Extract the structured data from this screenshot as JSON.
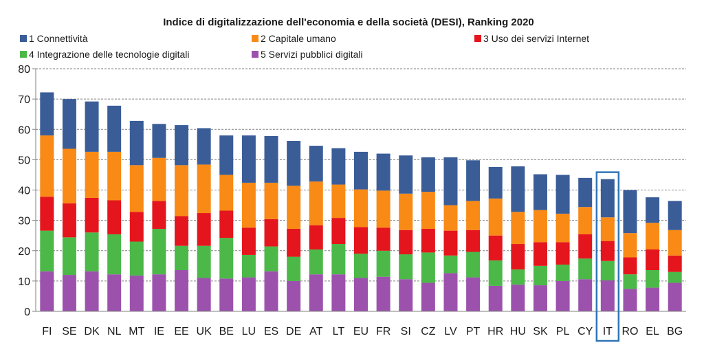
{
  "chart_data": {
    "type": "bar",
    "stacked": true,
    "title": "Indice di digitalizzazione dell'economia e della società (DESI), Ranking 2020",
    "xlabel": "",
    "ylabel": "",
    "ylim": [
      0,
      80
    ],
    "yticks": [
      0,
      10,
      20,
      30,
      40,
      50,
      60,
      70,
      80
    ],
    "grid": true,
    "legend_position": "top",
    "highlight_category": "IT",
    "highlight_color": "#2e75b6",
    "categories": [
      "FI",
      "SE",
      "DK",
      "NL",
      "MT",
      "IE",
      "EE",
      "UK",
      "BE",
      "LU",
      "ES",
      "DE",
      "AT",
      "LT",
      "EU",
      "FR",
      "SI",
      "CZ",
      "LV",
      "PT",
      "HR",
      "HU",
      "SK",
      "PL",
      "CY",
      "IT",
      "RO",
      "EL",
      "BG"
    ],
    "series": [
      {
        "name": "5 Servizi pubblici digitali",
        "color": "#9c52ad",
        "values": [
          13.2,
          12.0,
          13.2,
          12.2,
          11.8,
          12.2,
          13.6,
          11.0,
          10.8,
          11.2,
          13.2,
          10.0,
          12.2,
          12.2,
          11.0,
          11.4,
          10.6,
          9.4,
          12.6,
          11.2,
          8.4,
          8.8,
          8.6,
          10.0,
          10.6,
          10.2,
          7.4,
          7.8,
          9.4
        ]
      },
      {
        "name": "4 Integrazione delle tecnologie digitali",
        "color": "#4cb848",
        "values": [
          13.4,
          12.4,
          12.8,
          13.2,
          11.2,
          15.0,
          8.0,
          10.6,
          13.4,
          7.4,
          8.2,
          8.0,
          8.2,
          10.0,
          8.0,
          8.6,
          8.2,
          10.0,
          5.8,
          8.4,
          8.4,
          5.0,
          6.4,
          5.4,
          6.8,
          6.4,
          4.8,
          5.8,
          3.6
        ]
      },
      {
        "name": "3 Uso dei servizi Internet",
        "color": "#e4151d",
        "values": [
          11.2,
          11.2,
          11.4,
          11.2,
          9.8,
          9.2,
          9.8,
          10.8,
          9.0,
          9.0,
          9.0,
          9.2,
          8.0,
          8.6,
          8.8,
          7.6,
          8.0,
          7.8,
          8.2,
          7.2,
          8.2,
          8.4,
          7.8,
          7.4,
          8.0,
          6.6,
          5.6,
          6.8,
          5.4
        ]
      },
      {
        "name": "2 Capitale umano",
        "color": "#f98a16",
        "values": [
          20.2,
          18.0,
          15.2,
          16.0,
          15.4,
          14.2,
          16.8,
          16.0,
          11.8,
          14.8,
          12.0,
          14.2,
          14.4,
          11.0,
          12.4,
          12.2,
          12.0,
          12.2,
          8.4,
          9.6,
          12.2,
          10.6,
          10.6,
          9.4,
          9.0,
          7.8,
          8.0,
          8.8,
          8.4
        ]
      },
      {
        "name": "1 Connettività",
        "color": "#3a5d98",
        "values": [
          14.2,
          16.4,
          16.6,
          15.2,
          14.6,
          11.2,
          13.2,
          12.0,
          13.0,
          15.6,
          15.4,
          14.8,
          11.8,
          12.0,
          12.4,
          12.2,
          12.6,
          11.4,
          15.8,
          13.4,
          10.4,
          15.0,
          11.8,
          12.8,
          9.6,
          12.6,
          14.2,
          8.4,
          9.6
        ]
      }
    ],
    "legend_order": [
      "1 Connettività",
      "2 Capitale umano",
      "3 Uso dei servizi Internet",
      "4 Integrazione delle tecnologie digitali",
      "5 Servizi pubblici digitali"
    ]
  }
}
